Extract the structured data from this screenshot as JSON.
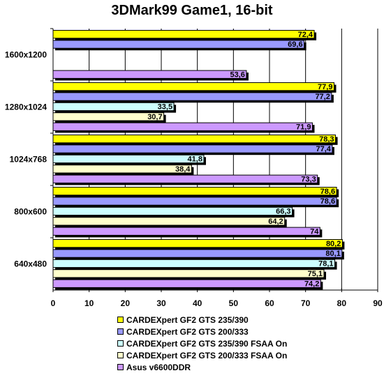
{
  "chart_data": {
    "type": "bar",
    "orientation": "horizontal",
    "title": "3DMark99 Game1, 16-bit",
    "categories": [
      "1600x1200",
      "1280x1024",
      "1024x768",
      "800x600",
      "640x480"
    ],
    "series": [
      {
        "name": "CARDEXpert GF2 GTS 235/390",
        "color": "#ffff00",
        "values": [
          72.4,
          77.9,
          78.3,
          78.6,
          80.2
        ],
        "labels": [
          "72,4",
          "77,9",
          "78,3",
          "78,6",
          "80,2"
        ]
      },
      {
        "name": "CARDEXpert GF2 GTS 200/333",
        "color": "#9999ff",
        "values": [
          69.6,
          77.2,
          77.4,
          78.6,
          80.1
        ],
        "labels": [
          "69,6",
          "77,2",
          "77,4",
          "78,6",
          "80,1"
        ]
      },
      {
        "name": "CARDEXpert GF2 GTS 235/390 FSAA On",
        "color": "#ccffff",
        "values": [
          null,
          33.5,
          41.8,
          66.3,
          78.1
        ],
        "labels": [
          "",
          "33,5",
          "41,8",
          "66,3",
          "78,1"
        ]
      },
      {
        "name": "CARDEXpert GF2 GTS 200/333 FSAA On",
        "color": "#ffffcc",
        "values": [
          null,
          30.7,
          38.4,
          64.2,
          75.1
        ],
        "labels": [
          "",
          "30,7",
          "38,4",
          "64,2",
          "75,1"
        ]
      },
      {
        "name": "Asus v6600DDR",
        "color": "#cc99ff",
        "values": [
          53.6,
          71.9,
          73.3,
          74,
          74.2
        ],
        "labels": [
          "53,6",
          "71,9",
          "73,3",
          "74",
          "74,2"
        ]
      }
    ],
    "xlim": [
      0,
      90
    ],
    "xticks": [
      0,
      10,
      20,
      30,
      40,
      50,
      60,
      70,
      80,
      90
    ],
    "grid": true,
    "legend_position": "bottom"
  }
}
